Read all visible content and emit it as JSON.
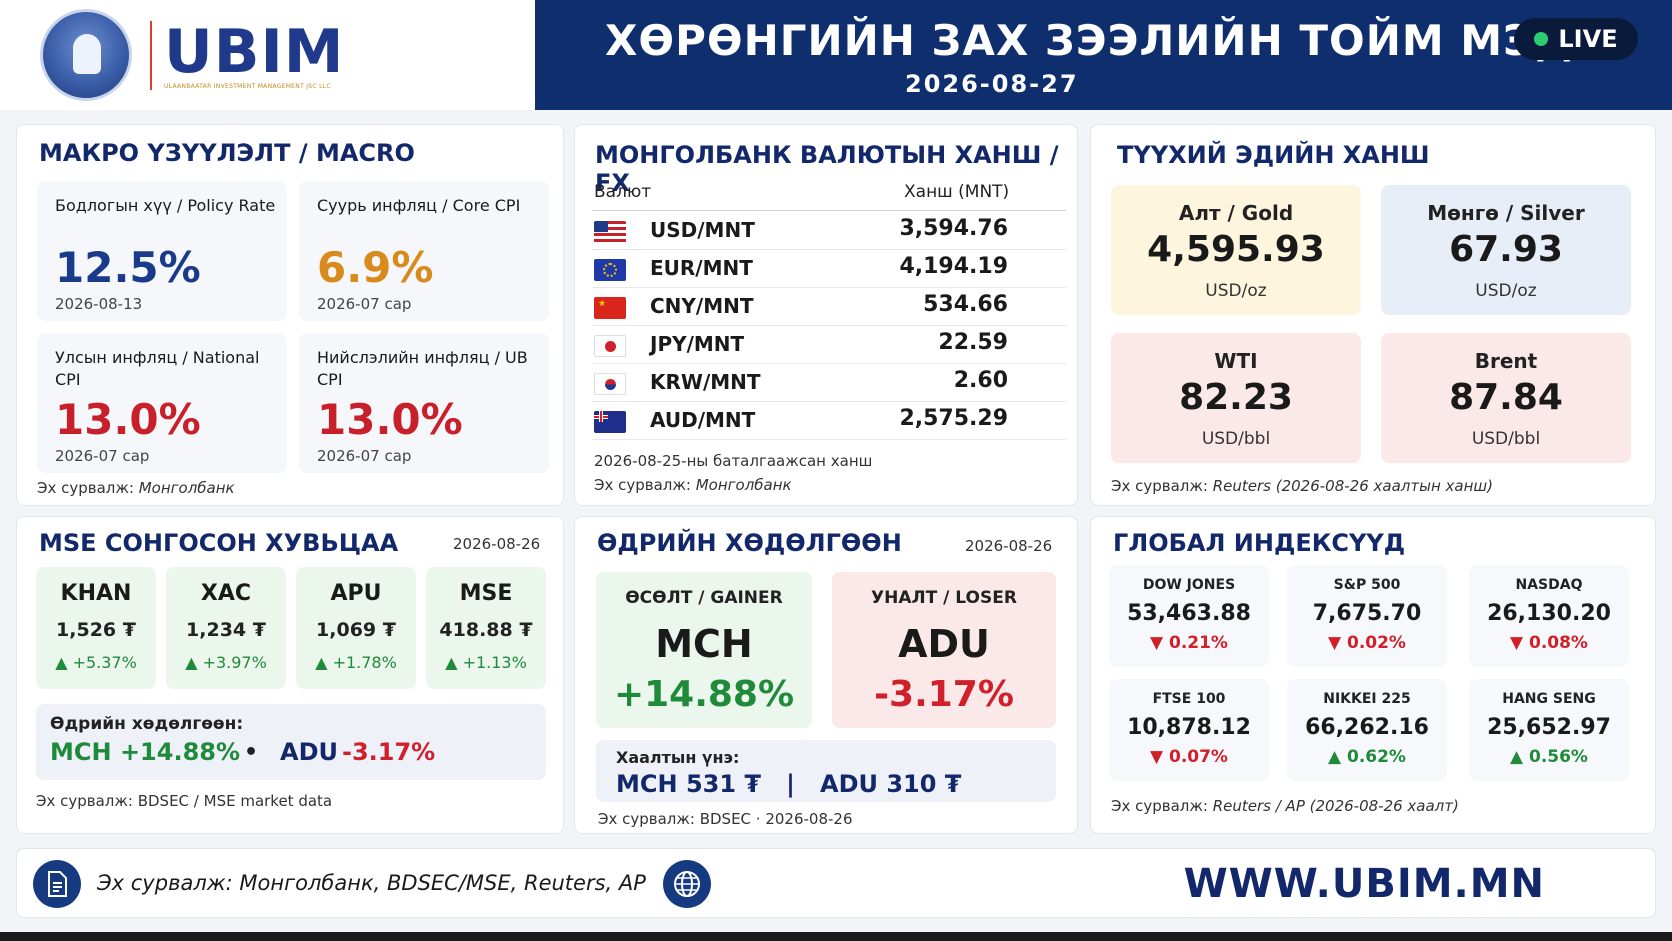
{
  "header": {
    "logo_name": "UBIM",
    "logo_sub": "ULAANBAATAR INVESTMENT MANAGEMENT JSC LLC",
    "title": "ХӨРӨНГИЙН ЗАХ ЗЭЭЛИЙН ТОЙМ МЭДЭЭ",
    "date": "2026-08-27",
    "live": "LIVE",
    "live_color": "#2ecc71"
  },
  "macro": {
    "title": "МАКРО ҮЗҮҮЛЭЛТ / MACRO",
    "items": [
      {
        "label": "Бодлогын хүү / Policy Rate",
        "value": "12.5%",
        "date": "2026-08-13",
        "color": "#1a3a8a"
      },
      {
        "label": "Суурь инфляц / Core CPI",
        "value": "6.9%",
        "date": "2026-07 сар",
        "color": "#d98a1c"
      },
      {
        "label": "Улсын инфляц / National CPI",
        "value": "13.0%",
        "date": "2026-07 сар",
        "color": "#c8202a"
      },
      {
        "label": "Нийслэлийн инфляц / UB CPI",
        "value": "13.0%",
        "date": "2026-07 сар",
        "color": "#c8202a"
      }
    ],
    "source_prefix": "Эх сурвалж: ",
    "source_name": "Монголбанк"
  },
  "fx": {
    "title": "МОНГОЛБАНК ВАЛЮТЫН ХАНШ / FX",
    "col_currency": "Валют",
    "col_rate": "Ханш (MNT)",
    "rows": [
      {
        "pair": "USD/MNT",
        "rate": "3,594.76",
        "flag": "us-flag-icon"
      },
      {
        "pair": "EUR/MNT",
        "rate": "4,194.19",
        "flag": "eu-flag-icon"
      },
      {
        "pair": "CNY/MNT",
        "rate": "534.66",
        "flag": "cn-flag-icon"
      },
      {
        "pair": "JPY/MNT",
        "rate": "22.59",
        "flag": "jp-flag-icon"
      },
      {
        "pair": "KRW/MNT",
        "rate": "2.60",
        "flag": "kr-flag-icon"
      },
      {
        "pair": "AUD/MNT",
        "rate": "2,575.29",
        "flag": "au-flag-icon"
      }
    ],
    "note": "2026-08-25-ны баталгаажсан ханш",
    "source_prefix": "Эх сурвалж: ",
    "source_name": "Монголбанк"
  },
  "commodities": {
    "title": "ТҮҮХИЙ ЭДИЙН ХАНШ",
    "items": [
      {
        "name": "Алт / Gold",
        "value": "4,595.93",
        "unit": "USD/oz",
        "bg": "#fdf5dd"
      },
      {
        "name": "Мөнгө / Silver",
        "value": "67.93",
        "unit": "USD/oz",
        "bg": "#e8eef8"
      },
      {
        "name": "WTI",
        "value": "82.23",
        "unit": "USD/bbl",
        "bg": "#fbe9ea"
      },
      {
        "name": "Brent",
        "value": "87.84",
        "unit": "USD/bbl",
        "bg": "#fbe9ea"
      }
    ],
    "source_prefix": "Эх сурвалж: ",
    "source_name": "Reuters (2026-08-26 хаалтын ханш)"
  },
  "mse": {
    "title": "MSE СОНГОСОН ХУВЬЦАА",
    "date": "2026-08-26",
    "stocks": [
      {
        "ticker": "KHAN",
        "price": "1,526 ₮",
        "change": "▲ +5.37%"
      },
      {
        "ticker": "XAC",
        "price": "1,234 ₮",
        "change": "▲ +3.97%"
      },
      {
        "ticker": "APU",
        "price": "1,069 ₮",
        "change": "▲ +1.78%"
      },
      {
        "ticker": "MSE",
        "price": "418.88 ₮",
        "change": "▲ +1.13%"
      }
    ],
    "moves_label": "Өдрийн хөдөлгөөн:",
    "moves_gainer": "MCH +14.88%",
    "moves_sep": "•",
    "moves_loser_ticker": "ADU",
    "moves_loser_pct": "-3.17%",
    "source": "Эх сурвалж: BDSEC / MSE market data"
  },
  "daily": {
    "title": "ӨДРИЙН ХӨДӨЛГӨӨН",
    "date": "2026-08-26",
    "gainer_tag": "ӨСӨЛТ / GAINER",
    "gainer_ticker": "MCH",
    "gainer_pct": "+14.88%",
    "loser_tag": "УНАЛТ / LOSER",
    "loser_ticker": "ADU",
    "loser_pct": "-3.17%",
    "close_label": "Хаалтын үнэ:",
    "close_values": "MCH 531 ₮   |   ADU 310 ₮",
    "source": "Эх сурвалж: BDSEC · 2026-08-26"
  },
  "indices": {
    "title": "ГЛОБАЛ ИНДЕКСҮҮД",
    "items": [
      {
        "name": "DOW JONES",
        "value": "53,463.88",
        "change": "▼ 0.21%",
        "dir": "down"
      },
      {
        "name": "S&P 500",
        "value": "7,675.70",
        "change": "▼ 0.02%",
        "dir": "down"
      },
      {
        "name": "NASDAQ",
        "value": "26,130.20",
        "change": "▼ 0.08%",
        "dir": "down"
      },
      {
        "name": "FTSE 100",
        "value": "10,878.12",
        "change": "▼ 0.07%",
        "dir": "down"
      },
      {
        "name": "NIKKEI 225",
        "value": "66,262.16",
        "change": "▲ 0.62%",
        "dir": "up"
      },
      {
        "name": "HANG SENG",
        "value": "25,652.97",
        "change": "▲ 0.56%",
        "dir": "up"
      }
    ],
    "source_prefix": "Эх сурвалж: ",
    "source_name": "Reuters / AP (2026-08-26 хаалт)"
  },
  "footer": {
    "source": "Эх сурвалж: Монголбанк, BDSEC/MSE, Reuters, AP",
    "url": "WWW.UBIM.MN"
  }
}
